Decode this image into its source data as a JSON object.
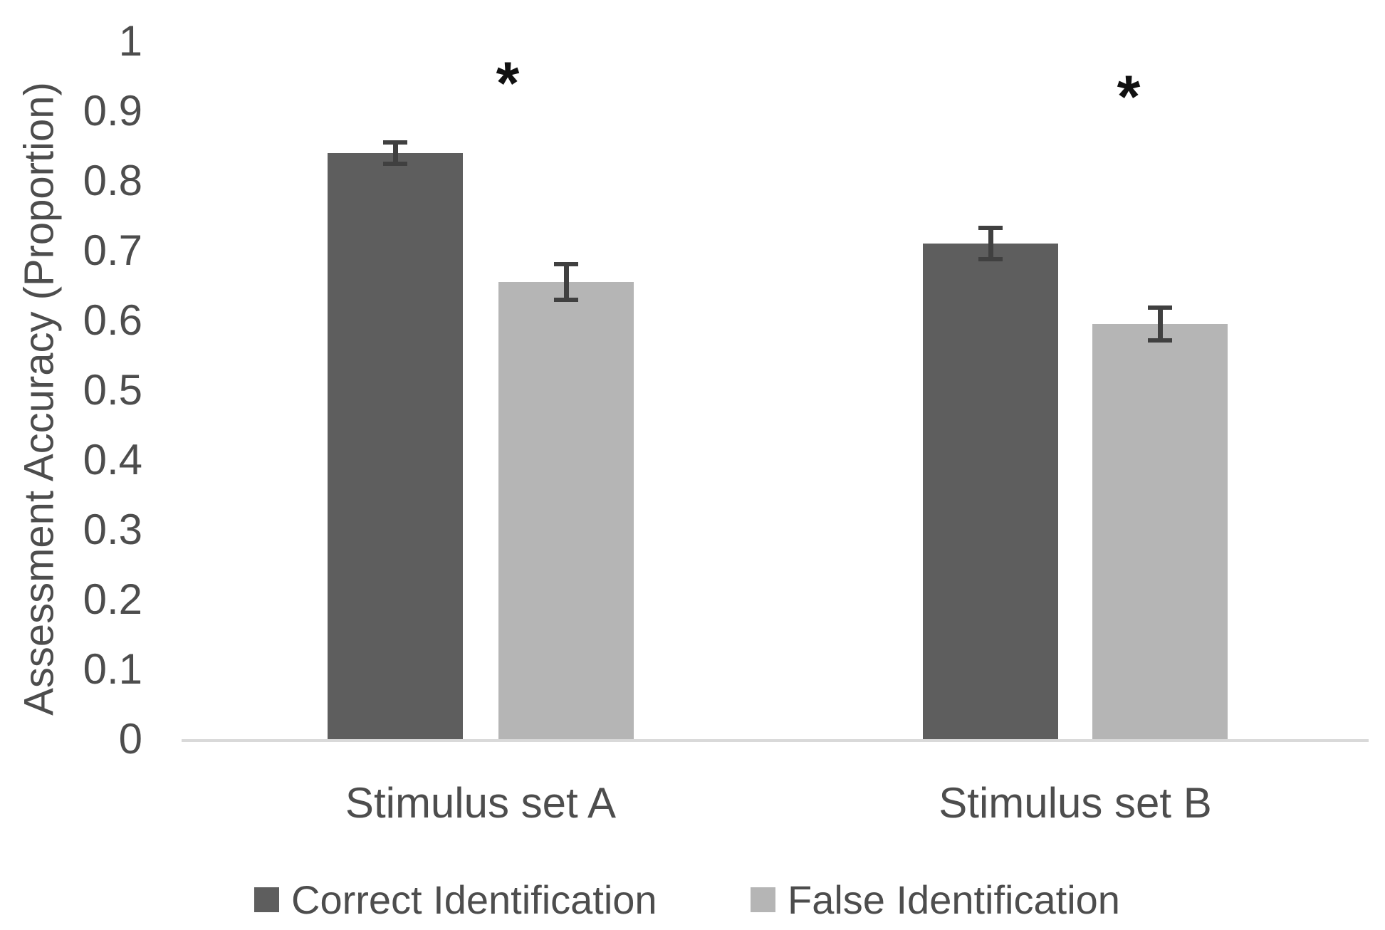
{
  "chart_data": {
    "type": "bar",
    "title": "",
    "ylabel": "Assessment Accuracy (Proportion)",
    "xlabel": "",
    "categories": [
      "Stimulus set A",
      "Stimulus set B"
    ],
    "series": [
      {
        "name": "Correct Identification",
        "color": "#5e5e5e",
        "values": [
          0.84,
          0.71
        ],
        "errors": [
          0.015,
          0.022
        ]
      },
      {
        "name": "False Identification",
        "color": "#b5b5b5",
        "values": [
          0.655,
          0.595
        ],
        "errors": [
          0.025,
          0.023
        ]
      }
    ],
    "ylim": [
      0,
      1
    ],
    "ytick_labels": [
      {
        "value": 0,
        "label": "0"
      },
      {
        "value": 0.1,
        "label": "0.1"
      },
      {
        "value": 0.2,
        "label": "0.2"
      },
      {
        "value": 0.3,
        "label": "0.3"
      },
      {
        "value": 0.4,
        "label": "0.4"
      },
      {
        "value": 0.5,
        "label": "0.5"
      },
      {
        "value": 0.6,
        "label": "0.6"
      },
      {
        "value": 0.7,
        "label": "0.7"
      },
      {
        "value": 0.8,
        "label": "0.8"
      },
      {
        "value": 0.9,
        "label": "0.9"
      },
      {
        "value": 1,
        "label": "1"
      }
    ],
    "grid": false,
    "legend_position": "bottom",
    "error_bars": true,
    "annotations": [
      {
        "text": "*",
        "group": "Stimulus set A"
      },
      {
        "text": "*",
        "group": "Stimulus set B"
      }
    ],
    "colors": {
      "axis_line": "#d9d9d9",
      "error_bar": "#404040",
      "text": "#4d4d4d",
      "annotation": "#111111",
      "background": "#ffffff"
    }
  }
}
